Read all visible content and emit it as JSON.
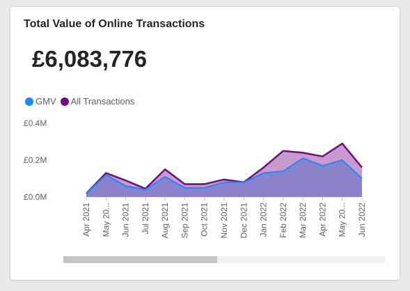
{
  "card": {
    "title": "Total Value of Online Transactions",
    "kpi_value": "£6,083,776"
  },
  "legend": {
    "items": [
      {
        "label": "GMV",
        "color": "#118dff"
      },
      {
        "label": "All Transactions",
        "color": "#750985"
      }
    ]
  },
  "chart_data": {
    "type": "area",
    "title": "",
    "xlabel": "",
    "ylabel": "",
    "categories": [
      "Apr 2021",
      "May 20...",
      "Jun 2021",
      "Jul 2021",
      "Aug 2021",
      "Sep 2021",
      "Oct 2021",
      "Nov 2021",
      "Dec 2021",
      "Jan 2022",
      "Feb 2022",
      "Mar 2022",
      "Apr 2022",
      "May 20...",
      "Jun 2022"
    ],
    "yticks": [
      "£0.0M",
      "£0.2M",
      "£0.4M"
    ],
    "ylim": [
      0,
      0.4
    ],
    "series": [
      {
        "name": "GMV",
        "color": "#118dff",
        "fill": "#8c82cc",
        "values": [
          0.02,
          0.12,
          0.06,
          0.04,
          0.11,
          0.05,
          0.05,
          0.08,
          0.08,
          0.13,
          0.14,
          0.21,
          0.17,
          0.2,
          0.1
        ]
      },
      {
        "name": "All Transactions",
        "color": "#750985",
        "fill": "#c79bd0",
        "values": [
          0.02,
          0.13,
          0.09,
          0.045,
          0.15,
          0.07,
          0.07,
          0.095,
          0.08,
          0.16,
          0.25,
          0.24,
          0.22,
          0.29,
          0.16
        ]
      }
    ],
    "legend_position": "top-left",
    "grid": false
  },
  "scrollbar": {
    "position": 0.0,
    "visible_fraction": 0.48
  }
}
